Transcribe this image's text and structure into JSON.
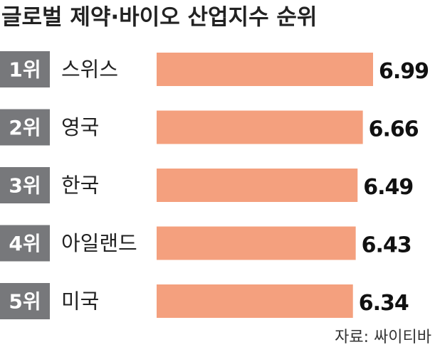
{
  "chart_data": {
    "type": "bar",
    "orientation": "horizontal",
    "title": "글로벌 제약·바이오 산업지수 순위",
    "ranks": [
      "1위",
      "2위",
      "3위",
      "4위",
      "5위"
    ],
    "categories": [
      "스위스",
      "영국",
      "한국",
      "아일랜드",
      "미국"
    ],
    "values": [
      6.99,
      6.66,
      6.49,
      6.43,
      6.34
    ],
    "color": "#f4a07e",
    "rank_color": "#77787b",
    "source": "자료: 싸이티바"
  }
}
